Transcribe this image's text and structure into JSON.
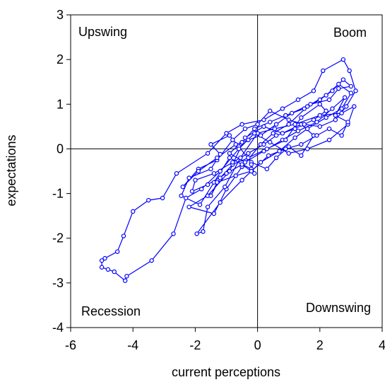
{
  "chart_data": {
    "type": "line",
    "xlabel": "current perceptions",
    "ylabel": "expectations",
    "xlim": [
      -6,
      4
    ],
    "ylim": [
      -4,
      3
    ],
    "xticks": [
      "-6",
      "-4",
      "-2",
      "0",
      "2",
      "4"
    ],
    "yticks": [
      "-4",
      "-3",
      "-2",
      "-1",
      "0",
      "1",
      "2",
      "3"
    ],
    "reference_lines": {
      "x": 0,
      "y": 0
    },
    "grid": false,
    "annotations": [
      {
        "text": "Upswing",
        "quadrant": "top-left"
      },
      {
        "text": "Boom",
        "quadrant": "top-right"
      },
      {
        "text": "Recession",
        "quadrant": "bottom-left"
      },
      {
        "text": "Downswing",
        "quadrant": "bottom-right"
      }
    ],
    "series": [
      {
        "color": "#0000ff",
        "marker": "circle",
        "points": [
          [
            -0.2,
            -0.45
          ],
          [
            -0.9,
            -0.2
          ],
          [
            -1.4,
            -0.75
          ],
          [
            -1.85,
            -1.25
          ],
          [
            -2.45,
            -1.05
          ],
          [
            -2.2,
            -0.65
          ],
          [
            -1.5,
            -0.45
          ],
          [
            -1.2,
            -0.12
          ],
          [
            -1.5,
            0.1
          ],
          [
            -0.9,
            0.3
          ],
          [
            -0.6,
            0.05
          ],
          [
            -0.2,
            -0.3
          ],
          [
            0.3,
            -0.45
          ],
          [
            0.6,
            -0.2
          ],
          [
            1.0,
            0.05
          ],
          [
            1.4,
            -0.15
          ],
          [
            1.8,
            0.3
          ],
          [
            1.4,
            0.55
          ],
          [
            0.8,
            0.35
          ],
          [
            0.2,
            0.5
          ],
          [
            -0.4,
            0.25
          ],
          [
            -0.9,
            -0.5
          ],
          [
            -1.6,
            -1.05
          ],
          [
            -2.2,
            -1.3
          ],
          [
            -1.4,
            -1.45
          ],
          [
            -1.0,
            -0.9
          ],
          [
            -0.5,
            -0.4
          ],
          [
            0.1,
            0.1
          ],
          [
            0.5,
            0.35
          ],
          [
            1.0,
            0.55
          ],
          [
            1.6,
            0.95
          ],
          [
            2.2,
            1.2
          ],
          [
            2.6,
            1.45
          ],
          [
            3.0,
            1.25
          ],
          [
            2.7,
            0.9
          ],
          [
            2.2,
            0.7
          ],
          [
            1.6,
            0.45
          ],
          [
            1.2,
            0.25
          ],
          [
            0.7,
            -0.05
          ],
          [
            0.1,
            -0.3
          ],
          [
            -0.5,
            -0.7
          ],
          [
            -1.2,
            -1.2
          ],
          [
            -1.95,
            -1.9
          ],
          [
            -1.75,
            -1.85
          ],
          [
            -1.6,
            -1.3
          ],
          [
            -1.05,
            -0.85
          ],
          [
            -0.55,
            -0.2
          ],
          [
            0.0,
            0.35
          ],
          [
            0.55,
            0.45
          ],
          [
            1.2,
            0.55
          ],
          [
            2.0,
            0.75
          ],
          [
            2.7,
            0.8
          ],
          [
            3.1,
            0.95
          ],
          [
            2.9,
            0.55
          ],
          [
            2.3,
            0.2
          ],
          [
            1.6,
            0.0
          ],
          [
            1.0,
            -0.1
          ],
          [
            0.4,
            0.15
          ],
          [
            -0.1,
            0.35
          ],
          [
            -0.6,
            0.0
          ],
          [
            -1.2,
            -0.5
          ],
          [
            -1.8,
            -0.9
          ],
          [
            -2.3,
            -1.1
          ],
          [
            -2.7,
            -1.9
          ],
          [
            -3.4,
            -2.5
          ],
          [
            -4.2,
            -2.85
          ],
          [
            -4.25,
            -2.95
          ],
          [
            -4.6,
            -2.75
          ],
          [
            -4.8,
            -2.7
          ],
          [
            -5.0,
            -2.65
          ],
          [
            -5.0,
            -2.5
          ],
          [
            -4.9,
            -2.45
          ],
          [
            -4.5,
            -2.3
          ],
          [
            -4.3,
            -1.95
          ],
          [
            -4.0,
            -1.4
          ],
          [
            -3.5,
            -1.15
          ],
          [
            -3.05,
            -1.1
          ],
          [
            -2.6,
            -0.55
          ],
          [
            -1.6,
            -0.1
          ],
          [
            -1.0,
            0.35
          ],
          [
            -0.5,
            0.55
          ],
          [
            0.2,
            0.65
          ],
          [
            0.8,
            0.9
          ],
          [
            1.3,
            1.1
          ],
          [
            1.8,
            1.3
          ],
          [
            2.1,
            1.75
          ],
          [
            2.75,
            2.0
          ],
          [
            2.95,
            1.75
          ],
          [
            3.15,
            1.3
          ],
          [
            2.85,
            0.95
          ],
          [
            2.5,
            0.65
          ],
          [
            2.0,
            0.5
          ],
          [
            1.5,
            0.55
          ],
          [
            1.0,
            0.65
          ],
          [
            0.4,
            0.85
          ],
          [
            0.0,
            0.55
          ],
          [
            -0.4,
            0.45
          ],
          [
            -0.8,
            0.2
          ],
          [
            -1.3,
            -0.25
          ],
          [
            -1.9,
            -0.45
          ],
          [
            -2.4,
            -0.85
          ],
          [
            -1.9,
            -0.5
          ],
          [
            -1.3,
            -0.2
          ],
          [
            -0.7,
            0.1
          ],
          [
            -0.3,
            0.2
          ],
          [
            0.1,
            0.3
          ],
          [
            0.6,
            0.55
          ],
          [
            1.1,
            0.8
          ],
          [
            1.7,
            1.0
          ],
          [
            2.3,
            1.1
          ],
          [
            2.6,
            1.35
          ],
          [
            3.0,
            1.4
          ],
          [
            2.75,
            1.55
          ],
          [
            2.4,
            1.3
          ],
          [
            2.0,
            1.1
          ],
          [
            1.5,
            0.9
          ],
          [
            0.9,
            0.75
          ],
          [
            0.4,
            0.6
          ],
          [
            -0.1,
            0.45
          ],
          [
            -0.5,
            0.15
          ],
          [
            -0.9,
            -0.1
          ],
          [
            -0.4,
            -0.3
          ],
          [
            0.2,
            -0.05
          ],
          [
            0.8,
            0.2
          ],
          [
            1.3,
            0.4
          ],
          [
            1.9,
            0.6
          ],
          [
            2.4,
            0.9
          ],
          [
            2.8,
            1.15
          ],
          [
            2.5,
            0.75
          ],
          [
            2.9,
            0.6
          ],
          [
            2.7,
            0.3
          ],
          [
            2.3,
            0.45
          ],
          [
            1.9,
            0.3
          ],
          [
            1.4,
            0.1
          ],
          [
            0.9,
            0.0
          ],
          [
            0.35,
            -0.15
          ],
          [
            -0.2,
            -0.5
          ],
          [
            -0.7,
            -0.6
          ],
          [
            -1.3,
            -0.75
          ],
          [
            -1.5,
            -1.05
          ],
          [
            -1.2,
            -0.65
          ],
          [
            -0.8,
            -0.35
          ],
          [
            -0.3,
            -0.2
          ],
          [
            0.3,
            0.0
          ],
          [
            0.9,
            0.2
          ],
          [
            1.4,
            0.7
          ],
          [
            2.0,
            1.0
          ],
          [
            2.2,
            0.85
          ],
          [
            1.8,
            0.65
          ],
          [
            1.2,
            0.45
          ],
          [
            0.6,
            0.3
          ],
          [
            0.2,
            0.1
          ],
          [
            -0.3,
            -0.1
          ],
          [
            -0.8,
            -0.3
          ],
          [
            -1.4,
            -0.55
          ],
          [
            -2.0,
            -0.7
          ],
          [
            -2.1,
            -0.95
          ],
          [
            -1.6,
            -0.8
          ],
          [
            -1.0,
            -0.55
          ],
          [
            -0.5,
            -0.35
          ],
          [
            -0.1,
            -0.55
          ],
          [
            -0.2,
            -0.35
          ]
        ]
      }
    ]
  }
}
